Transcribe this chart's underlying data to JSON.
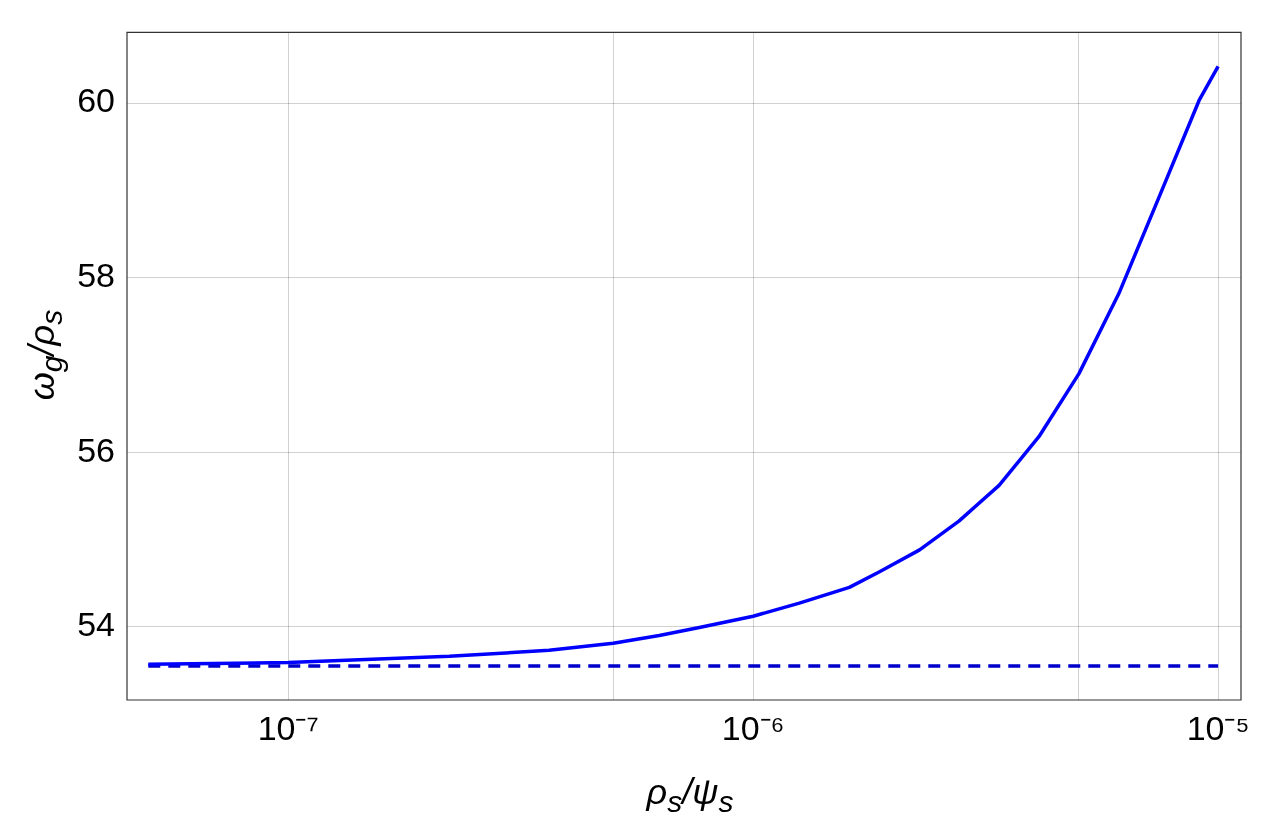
{
  "chart_data": {
    "type": "line",
    "xlabel": "ρ$_{s}$/ψ$_{s}$",
    "ylabel": "ω$_{g}$/ρ$_{s}$",
    "log": "x",
    "grid": true,
    "marker": "none",
    "xlim": [
      4.5e-08,
      1.12e-05
    ],
    "ylim": [
      53.16,
      60.81
    ],
    "xticks": [
      {
        "value": 1e-07,
        "label": "10⁻⁷"
      },
      {
        "value": 5e-07,
        "label": null
      },
      {
        "value": 1e-06,
        "label": "10⁻⁶"
      },
      {
        "value": 5e-06,
        "label": null
      },
      {
        "value": 1e-05,
        "label": "10⁻⁵"
      }
    ],
    "yticks": [
      54,
      56,
      58,
      60
    ],
    "series": [
      {
        "color": "#0000ff",
        "line_style": "solid",
        "x": [
          5e-08,
          1e-07,
          2.22e-07,
          3.64e-07,
          5e-07,
          6.28e-07,
          7.66e-07,
          1e-06,
          1.257e-06,
          1.61e-06,
          1.87e-06,
          2.28e-06,
          2.77e-06,
          3.38e-06,
          4.12e-06,
          5.02e-06,
          6.12e-06,
          7.46e-06,
          9.1e-06,
          1e-05
        ],
        "values": [
          53.57,
          53.59,
          53.66,
          53.73,
          53.81,
          53.9,
          53.99,
          54.12,
          54.27,
          54.45,
          54.63,
          54.88,
          55.21,
          55.62,
          56.18,
          56.9,
          57.82,
          58.92,
          60.03,
          60.42
        ]
      },
      {
        "color": "#0000cc",
        "line_style": "dashed",
        "x": [
          5e-08,
          1e-05
        ],
        "values": [
          53.55,
          53.55
        ]
      }
    ]
  }
}
